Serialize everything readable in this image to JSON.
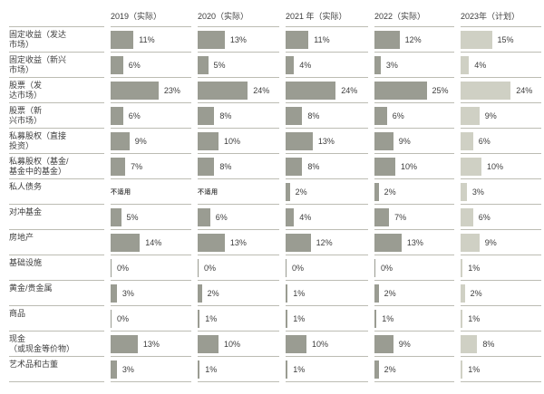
{
  "chart_data": {
    "type": "bar",
    "title": "",
    "unit": "%",
    "na_label": "不适用",
    "xlim": [
      0,
      25
    ],
    "grid": false,
    "legend_position": "none",
    "bar_colors": {
      "actual": "#9a9c92",
      "plan": "#cfd0c4"
    },
    "categories": [
      "固定收益（发达市场）",
      "固定收益（新兴市场）",
      "股票（发达市场）",
      "股票（新兴市场）",
      "私募股权（直接投资）",
      "私募股权（基金/基金中的基金）",
      "私人债务",
      "对冲基金",
      "房地产",
      "基础设施",
      "黄金/贵金属",
      "商品",
      "现金（或现金等价物）",
      "艺术品和古董"
    ],
    "series": [
      {
        "name": "2019（实际）",
        "type": "actual",
        "values": [
          11,
          6,
          23,
          6,
          9,
          7,
          null,
          5,
          14,
          0,
          3,
          0,
          13,
          3
        ]
      },
      {
        "name": "2020（实际）",
        "type": "actual",
        "values": [
          13,
          5,
          24,
          8,
          10,
          8,
          null,
          6,
          13,
          0,
          2,
          1,
          10,
          1
        ]
      },
      {
        "name": "2021 年（实际）",
        "type": "actual",
        "values": [
          11,
          4,
          24,
          8,
          13,
          8,
          2,
          4,
          12,
          0,
          1,
          1,
          10,
          1
        ]
      },
      {
        "name": "2022（实际）",
        "type": "actual",
        "values": [
          12,
          3,
          25,
          6,
          9,
          10,
          2,
          7,
          13,
          0,
          2,
          1,
          9,
          2
        ]
      },
      {
        "name": "2023年（计划）",
        "type": "plan",
        "values": [
          15,
          4,
          24,
          9,
          6,
          10,
          3,
          6,
          9,
          1,
          2,
          1,
          8,
          1
        ]
      }
    ]
  },
  "row_labels_display": [
    "固定收益（发达\n市场）",
    "固定收益（新兴\n市场）",
    "股票（发\n达市场）",
    "股票（新\n兴市场）",
    "私募股权（直接\n投资）",
    "私募股权（基金/\n基金中的基金）",
    "私人债务",
    "对冲基金",
    "房地产",
    "基础设施",
    "黄金/贵金属",
    "商品",
    "现金\n（或现金等价物）",
    "艺术品和古董"
  ]
}
